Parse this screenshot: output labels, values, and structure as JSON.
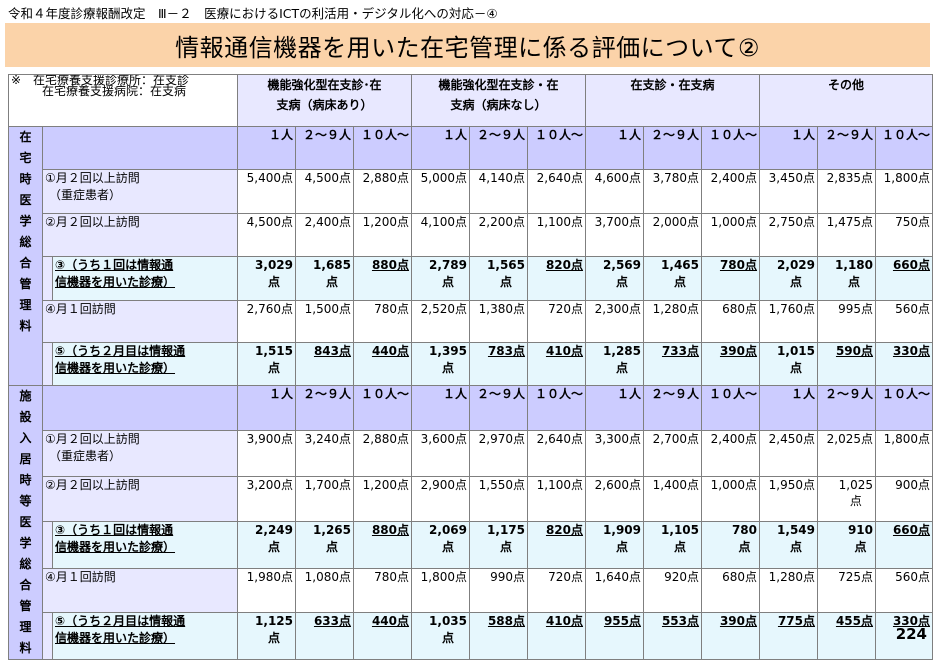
{
  "subtitle": "令和４年度診療報酬改定　Ⅲ－２　医療におけるICTの利活用・デジタル化への対応－④",
  "title": "情報通信機器を用いた在宅管理に係る評価について②",
  "note": [
    "※　在宅療養支援診療所：在支診",
    "在宅療養支援病院：在支病"
  ],
  "columns": [
    {
      "l1": "機能強化型在支診･在",
      "l2": "支病（病床あり）"
    },
    {
      "l1": "機能強化型在支診・在",
      "l2": "支病（病床なし）"
    },
    {
      "l1": "在支診・在支病",
      "l2": ""
    },
    {
      "l1": "その他",
      "l2": ""
    }
  ],
  "subheads": [
    {
      "a": "１人",
      "b": ""
    },
    {
      "a": "２～９",
      "b": "人"
    },
    {
      "a": "１０人",
      "b": "～"
    }
  ],
  "sections": [
    {
      "side": [
        "在",
        "宅",
        "時",
        "医",
        "学",
        "総",
        "合",
        "管",
        "理",
        "料"
      ],
      "rows": [
        {
          "type": "normal",
          "label": [
            "①月２回以上訪問",
            "（重症患者）"
          ],
          "values": [
            [
              "5,400点"
            ],
            [
              "4,500点"
            ],
            [
              "2,880点"
            ],
            [
              "5,000点"
            ],
            [
              "4,140点"
            ],
            [
              "2,640点"
            ],
            [
              "4,600点"
            ],
            [
              "3,780点"
            ],
            [
              "2,400点"
            ],
            [
              "3,450点"
            ],
            [
              "2,835点"
            ],
            [
              "1,800点"
            ]
          ]
        },
        {
          "type": "normal",
          "label": [
            "②月２回以上訪問"
          ],
          "values": [
            [
              "4,500点"
            ],
            [
              "2,400点"
            ],
            [
              "1,200点"
            ],
            [
              "4,100点"
            ],
            [
              "2,200点"
            ],
            [
              "1,100点"
            ],
            [
              "3,700点"
            ],
            [
              "2,000点"
            ],
            [
              "1,000点"
            ],
            [
              "2,750点"
            ],
            [
              "1,475点"
            ],
            [
              "750点"
            ]
          ]
        },
        {
          "type": "highlight",
          "label": [
            "③（うち１回は情報通",
            "信機器を用いた診療）"
          ],
          "values": [
            [
              "3,029",
              "点"
            ],
            [
              "1,685",
              "点"
            ],
            [
              "880点"
            ],
            [
              "2,789",
              "点"
            ],
            [
              "1,565",
              "点"
            ],
            [
              "820点"
            ],
            [
              "2,569",
              "点"
            ],
            [
              "1,465",
              "点"
            ],
            [
              "780点"
            ],
            [
              "2,029",
              "点"
            ],
            [
              "1,180",
              "点"
            ],
            [
              "660点"
            ]
          ]
        },
        {
          "type": "normal",
          "label": [
            "④月１回訪問"
          ],
          "values": [
            [
              "2,760点"
            ],
            [
              "1,500点"
            ],
            [
              "780点"
            ],
            [
              "2,520点"
            ],
            [
              "1,380点"
            ],
            [
              "720点"
            ],
            [
              "2,300点"
            ],
            [
              "1,280点"
            ],
            [
              "680点"
            ],
            [
              "1,760点"
            ],
            [
              "995点"
            ],
            [
              "560点"
            ]
          ]
        },
        {
          "type": "highlight",
          "label": [
            "⑤（うち２月目は情報通",
            "信機器を用いた診療）"
          ],
          "values": [
            [
              "1,515",
              "点"
            ],
            [
              "843点"
            ],
            [
              "440点"
            ],
            [
              "1,395",
              "点"
            ],
            [
              "783点"
            ],
            [
              "410点"
            ],
            [
              "1,285",
              "点"
            ],
            [
              "733点"
            ],
            [
              "390点"
            ],
            [
              "1,015",
              "点"
            ],
            [
              "590点"
            ],
            [
              "330点"
            ]
          ]
        }
      ]
    },
    {
      "side": [
        "施",
        "設",
        "入",
        "居",
        "時",
        "等",
        "医",
        "学",
        "総",
        "合",
        "管",
        "理",
        "料"
      ],
      "rows": [
        {
          "type": "normal",
          "label": [
            "①月２回以上訪問",
            "（重症患者）"
          ],
          "values": [
            [
              "3,900点"
            ],
            [
              "3,240点"
            ],
            [
              "2,880点"
            ],
            [
              "3,600点"
            ],
            [
              "2,970点"
            ],
            [
              "2,640点"
            ],
            [
              "3,300点"
            ],
            [
              "2,700点"
            ],
            [
              "2,400点"
            ],
            [
              "2,450点"
            ],
            [
              "2,025点"
            ],
            [
              "1,800点"
            ]
          ]
        },
        {
          "type": "normal",
          "label": [
            "②月２回以上訪問"
          ],
          "values": [
            [
              "3,200点"
            ],
            [
              "1,700点"
            ],
            [
              "1,200点"
            ],
            [
              "2,900点"
            ],
            [
              "1,550点"
            ],
            [
              "1,100点"
            ],
            [
              "2,600点"
            ],
            [
              "1,400点"
            ],
            [
              "1,000点"
            ],
            [
              "1,950点"
            ],
            [
              "1,025",
              "点"
            ],
            [
              "900点"
            ]
          ]
        },
        {
          "type": "highlight",
          "label": [
            "③（うち１回は情報通",
            "信機器を用いた診療）"
          ],
          "values": [
            [
              "2,249",
              "点"
            ],
            [
              "1,265",
              "点"
            ],
            [
              "880点"
            ],
            [
              "2,069",
              "点"
            ],
            [
              "1,175",
              "点"
            ],
            [
              "820点"
            ],
            [
              "1,909",
              "点"
            ],
            [
              "1,105",
              "点"
            ],
            [
              "780",
              "点"
            ],
            [
              "1,549",
              "点"
            ],
            [
              "910",
              "点"
            ],
            [
              "660点"
            ]
          ]
        },
        {
          "type": "normal",
          "label": [
            "④月１回訪問"
          ],
          "values": [
            [
              "1,980点"
            ],
            [
              "1,080点"
            ],
            [
              "780点"
            ],
            [
              "1,800点"
            ],
            [
              "990点"
            ],
            [
              "720点"
            ],
            [
              "1,640点"
            ],
            [
              "920点"
            ],
            [
              "680点"
            ],
            [
              "1,280点"
            ],
            [
              "725点"
            ],
            [
              "560点"
            ]
          ]
        },
        {
          "type": "highlight",
          "label": [
            "⑤（うち２月目は情報通",
            "信機器を用いた診療）"
          ],
          "values": [
            [
              "1,125",
              "点"
            ],
            [
              "633点"
            ],
            [
              "440点"
            ],
            [
              "1,035",
              "点"
            ],
            [
              "588点"
            ],
            [
              "410点"
            ],
            [
              "955点"
            ],
            [
              "553点"
            ],
            [
              "390点"
            ],
            [
              "775点"
            ],
            [
              "455点"
            ],
            [
              "330点"
            ]
          ]
        }
      ]
    }
  ],
  "page_number": "224"
}
